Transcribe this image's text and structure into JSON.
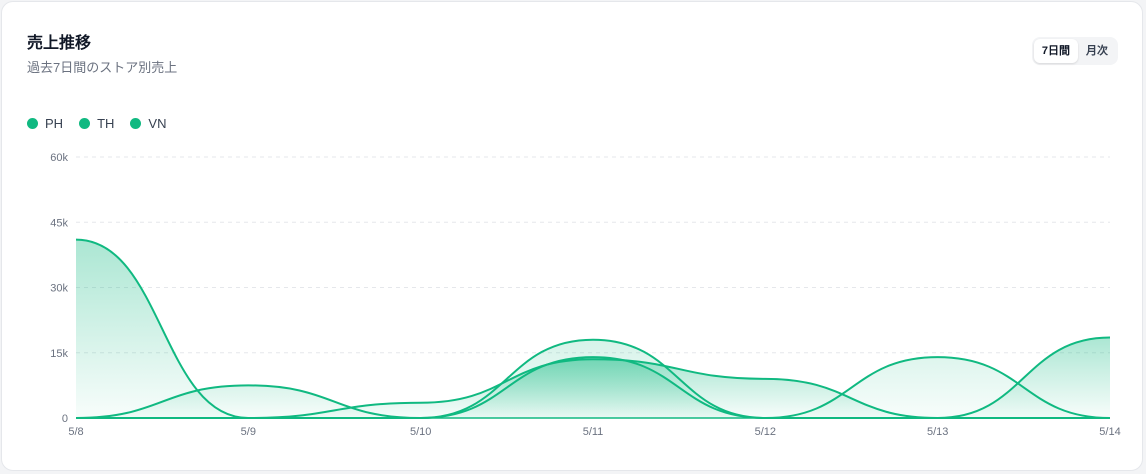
{
  "header": {
    "title": "売上推移",
    "subtitle": "過去7日間のストア別売上"
  },
  "range_toggle": {
    "options": [
      "7日間",
      "月次"
    ],
    "selected": "7日間"
  },
  "colors": {
    "series": "#10b981",
    "grid": "#e5e7eb",
    "text": "#6b7280"
  },
  "chart_data": {
    "type": "area",
    "categories": [
      "5/8",
      "5/9",
      "5/10",
      "5/11",
      "5/12",
      "5/13",
      "5/14"
    ],
    "y_ticks": [
      "0",
      "15k",
      "30k",
      "45k",
      "60k"
    ],
    "ylim": [
      0,
      60000
    ],
    "grid": true,
    "legend_position": "top-left",
    "series": [
      {
        "name": "PH",
        "values": [
          41000,
          0,
          0,
          18000,
          0,
          14000,
          0
        ]
      },
      {
        "name": "TH",
        "values": [
          0,
          7500,
          0,
          14000,
          0,
          0,
          18500
        ]
      },
      {
        "name": "VN",
        "values": [
          0,
          0,
          3500,
          13500,
          9000,
          0,
          0
        ]
      }
    ]
  }
}
